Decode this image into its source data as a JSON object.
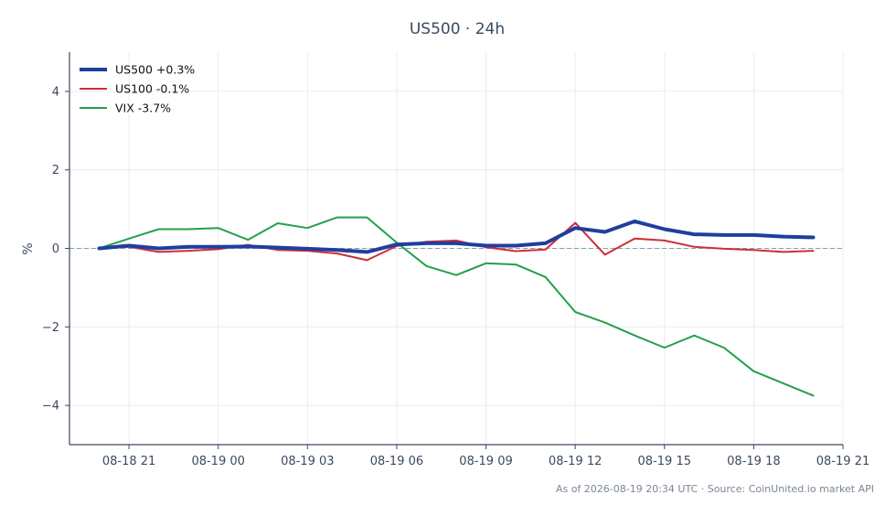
{
  "chart_data": {
    "type": "line",
    "title": "US500 · 24h",
    "xlabel": "",
    "ylabel": "%",
    "ylim": [
      -5,
      5
    ],
    "yticks": [
      {
        "value": -4,
        "label": "−4"
      },
      {
        "value": -2,
        "label": "−2"
      },
      {
        "value": 0,
        "label": "0"
      },
      {
        "value": 2,
        "label": "2"
      },
      {
        "value": 4,
        "label": "4"
      }
    ],
    "x_unit": "hours",
    "x_range": [
      "08-18 19:00",
      "08-19 21:00"
    ],
    "xticks": [
      "08-18 21",
      "08-19 00",
      "08-19 03",
      "08-19 06",
      "08-19 09",
      "08-19 12",
      "08-19 15",
      "08-19 18",
      "08-19 21"
    ],
    "x": [
      "08-18 20:00",
      "08-18 21:00",
      "08-18 22:00",
      "08-18 23:00",
      "08-19 00:00",
      "08-19 01:00",
      "08-19 02:00",
      "08-19 03:00",
      "08-19 04:00",
      "08-19 05:00",
      "08-19 06:00",
      "08-19 07:00",
      "08-19 08:00",
      "08-19 09:00",
      "08-19 10:00",
      "08-19 11:00",
      "08-19 12:00",
      "08-19 13:00",
      "08-19 14:00",
      "08-19 15:00",
      "08-19 16:00",
      "08-19 17:00",
      "08-19 18:00",
      "08-19 19:00",
      "08-19 20:00"
    ],
    "series": [
      {
        "name": "US500 +0.3%",
        "color": "#1f3f9e",
        "width": 4,
        "values": [
          0.0,
          0.07,
          0.0,
          0.04,
          0.04,
          0.05,
          0.02,
          -0.01,
          -0.04,
          -0.09,
          0.1,
          0.13,
          0.13,
          0.07,
          0.07,
          0.13,
          0.52,
          0.42,
          0.69,
          0.49,
          0.36,
          0.34,
          0.34,
          0.3,
          0.28
        ]
      },
      {
        "name": "US100 -0.1%",
        "color": "#cc2f36",
        "width": 2,
        "values": [
          0.0,
          0.04,
          -0.09,
          -0.06,
          -0.02,
          0.09,
          -0.04,
          -0.06,
          -0.13,
          -0.3,
          0.06,
          0.17,
          0.2,
          0.03,
          -0.07,
          -0.03,
          0.65,
          -0.16,
          0.25,
          0.2,
          0.04,
          -0.01,
          -0.04,
          -0.09,
          -0.06
        ]
      },
      {
        "name": "VIX -3.7%",
        "color": "#23a04a",
        "width": 2,
        "values": [
          0.0,
          0.25,
          0.49,
          0.49,
          0.52,
          0.22,
          0.64,
          0.52,
          0.79,
          0.79,
          0.15,
          -0.45,
          -0.68,
          -0.38,
          -0.41,
          -0.73,
          -1.62,
          -1.89,
          -2.22,
          -2.53,
          -2.22,
          -2.53,
          -3.13,
          -3.44,
          -3.75
        ]
      }
    ],
    "reference_line": {
      "value": 0,
      "style": "dashed",
      "color": "#8a9bb0"
    },
    "grid": true,
    "legend_position": "top-left"
  },
  "footer": "As of 2026-08-19 20:34 UTC · Source: CoinUnited.io market API"
}
